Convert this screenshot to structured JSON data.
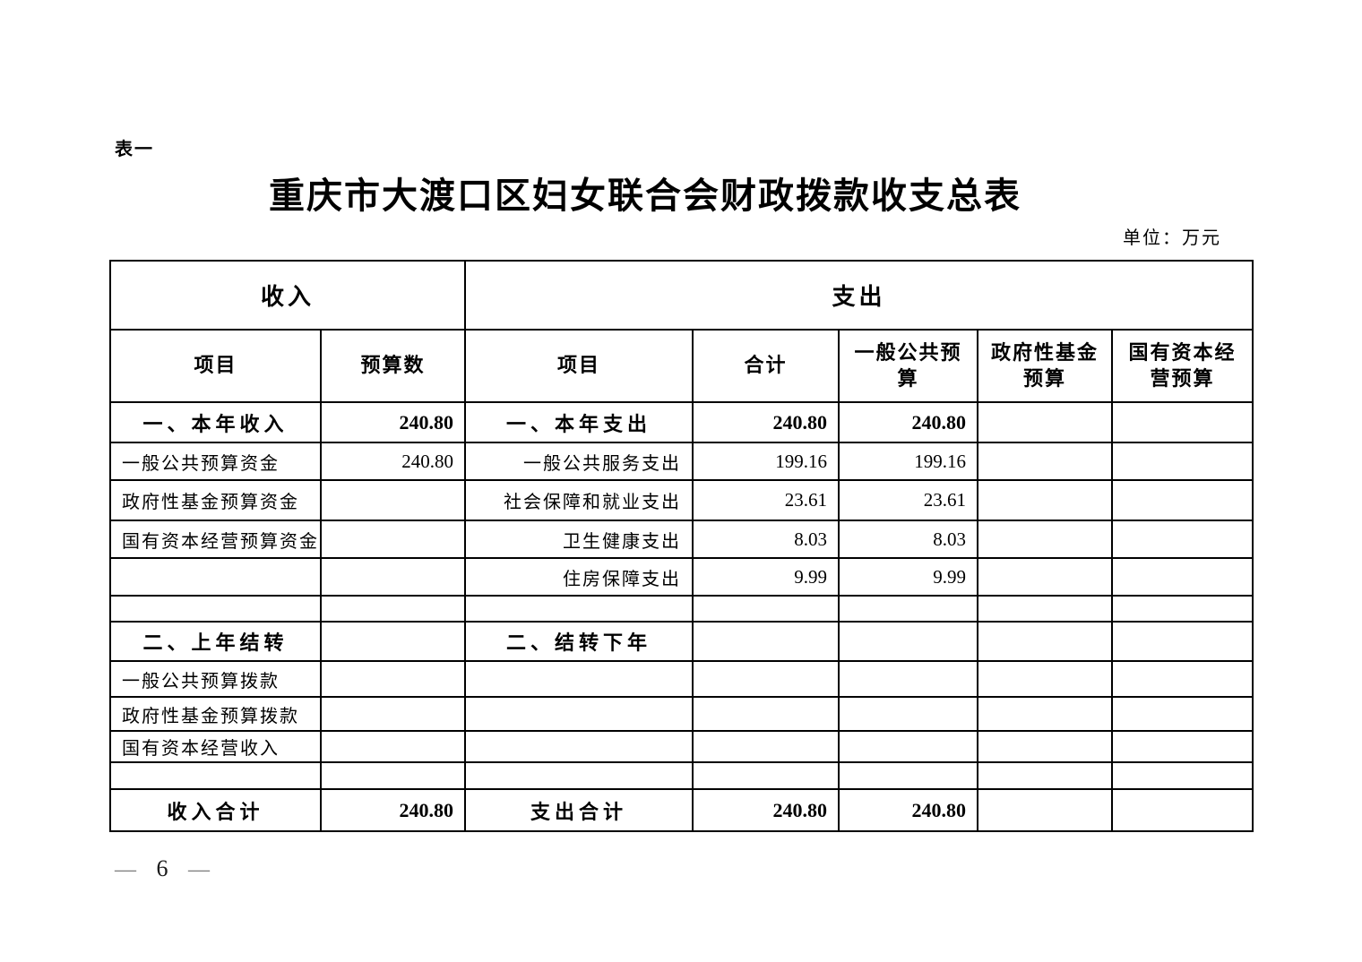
{
  "page": {
    "table_label": "表一",
    "title": "重庆市大渡口区妇女联合会财政拨款收支总表",
    "unit_note": "单位：万元",
    "page_number": "6",
    "page_number_dash": "—"
  },
  "table": {
    "header": {
      "income_group": "收入",
      "expense_group": "支出",
      "columns": [
        "项目",
        "预算数",
        "项目",
        "合计",
        "一般公共预\n算",
        "政府性基金\n预算",
        "国有资本经\n营预算"
      ]
    },
    "rows": [
      {
        "income_item": "一、本年收入",
        "income_budget": "240.80",
        "expense_item": "一、本年支出",
        "expense_total": "240.80",
        "general_public_budget": "240.80",
        "gov_fund_budget": "",
        "state_capital_budget": "",
        "emphasis": true
      },
      {
        "income_item": "一般公共预算资金",
        "income_budget": "240.80",
        "expense_item": "一般公共服务支出",
        "expense_total": "199.16",
        "general_public_budget": "199.16",
        "gov_fund_budget": "",
        "state_capital_budget": "",
        "emphasis": false
      },
      {
        "income_item": "政府性基金预算资金",
        "income_budget": "",
        "expense_item": "社会保障和就业支出",
        "expense_total": "23.61",
        "general_public_budget": "23.61",
        "gov_fund_budget": "",
        "state_capital_budget": "",
        "emphasis": false
      },
      {
        "income_item": "国有资本经营预算资金",
        "income_budget": "",
        "expense_item": "卫生健康支出",
        "expense_total": "8.03",
        "general_public_budget": "8.03",
        "gov_fund_budget": "",
        "state_capital_budget": "",
        "emphasis": false
      },
      {
        "income_item": "",
        "income_budget": "",
        "expense_item": "住房保障支出",
        "expense_total": "9.99",
        "general_public_budget": "9.99",
        "gov_fund_budget": "",
        "state_capital_budget": "",
        "emphasis": false
      },
      {
        "income_item": "",
        "income_budget": "",
        "expense_item": "",
        "expense_total": "",
        "general_public_budget": "",
        "gov_fund_budget": "",
        "state_capital_budget": "",
        "emphasis": false
      },
      {
        "income_item": "二、上年结转",
        "income_budget": "",
        "expense_item": "二、结转下年",
        "expense_total": "",
        "general_public_budget": "",
        "gov_fund_budget": "",
        "state_capital_budget": "",
        "emphasis": true
      },
      {
        "income_item": "一般公共预算拨款",
        "income_budget": "",
        "expense_item": "",
        "expense_total": "",
        "general_public_budget": "",
        "gov_fund_budget": "",
        "state_capital_budget": "",
        "emphasis": false
      },
      {
        "income_item": "政府性基金预算拨款",
        "income_budget": "",
        "expense_item": "",
        "expense_total": "",
        "general_public_budget": "",
        "gov_fund_budget": "",
        "state_capital_budget": "",
        "emphasis": false
      },
      {
        "income_item": "国有资本经营收入",
        "income_budget": "",
        "expense_item": "",
        "expense_total": "",
        "general_public_budget": "",
        "gov_fund_budget": "",
        "state_capital_budget": "",
        "emphasis": false
      },
      {
        "income_item": "",
        "income_budget": "",
        "expense_item": "",
        "expense_total": "",
        "general_public_budget": "",
        "gov_fund_budget": "",
        "state_capital_budget": "",
        "emphasis": false
      },
      {
        "income_item": "收入合计",
        "income_budget": "240.80",
        "expense_item": "支出合计",
        "expense_total": "240.80",
        "general_public_budget": "240.80",
        "gov_fund_budget": "",
        "state_capital_budget": "",
        "emphasis": true
      }
    ]
  }
}
